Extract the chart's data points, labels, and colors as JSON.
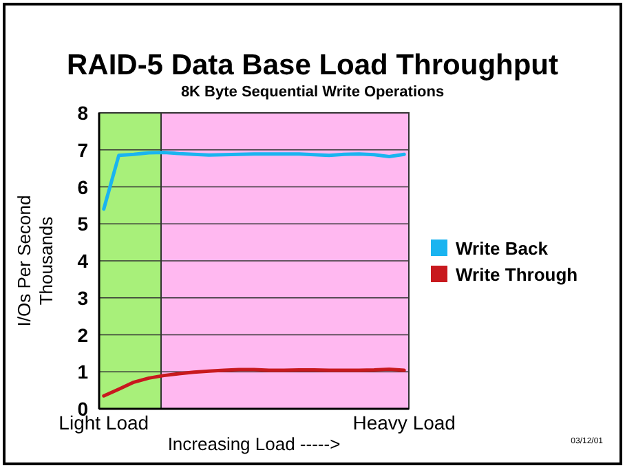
{
  "chart_data": {
    "type": "line",
    "title": "RAID-5 Data Base Load Throughput",
    "subtitle": "8K Byte Sequential Write Operations",
    "xlabel": "Increasing Load ----->",
    "ylabel": "I/Os Per Second\nThousands",
    "annotations": [
      "03/12/01"
    ],
    "categories": [
      "Light Load",
      null,
      null,
      null,
      null,
      null,
      null,
      null,
      null,
      null,
      null,
      null,
      null,
      null,
      null,
      null,
      null,
      null,
      null,
      null,
      "Heavy Load"
    ],
    "series": [
      {
        "name": "Write Back",
        "color": "#1ab4f0",
        "values": [
          5.4,
          6.85,
          6.88,
          6.92,
          6.93,
          6.9,
          6.88,
          6.86,
          6.87,
          6.88,
          6.89,
          6.89,
          6.89,
          6.89,
          6.87,
          6.85,
          6.88,
          6.89,
          6.87,
          6.82,
          6.88
        ]
      },
      {
        "name": "Write Through",
        "color": "#c8191e",
        "values": [
          0.35,
          0.53,
          0.72,
          0.83,
          0.9,
          0.95,
          0.99,
          1.02,
          1.04,
          1.06,
          1.06,
          1.04,
          1.04,
          1.05,
          1.05,
          1.04,
          1.04,
          1.04,
          1.05,
          1.07,
          1.04
        ]
      }
    ],
    "ylim": [
      0,
      8
    ],
    "yticks": [
      0,
      1,
      2,
      3,
      4,
      5,
      6,
      7,
      8
    ],
    "grid": "y",
    "legend": "right",
    "marker": "none",
    "line_style": "solid"
  }
}
